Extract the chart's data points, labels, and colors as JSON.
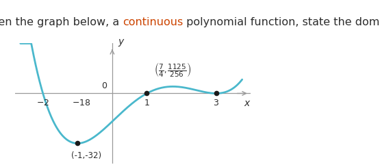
{
  "title_before": "Given the graph below, a ",
  "title_highlight": "continuous",
  "title_after": " polynomial function, state the domain.",
  "title_color": "#2d2d2d",
  "title_highlight_color": "#cc4400",
  "title_fontsize": 11.5,
  "curve_color": "#4ab8cc",
  "curve_linewidth": 2.0,
  "background_color": "#ffffff",
  "axis_color": "#999999",
  "dot_color": "#1a1a1a",
  "label_color": "#2d2d2d",
  "xlim": [
    -2.8,
    4.0
  ],
  "ylim": [
    -45,
    32
  ],
  "figsize": [
    5.55,
    2.44
  ],
  "dpi": 100
}
